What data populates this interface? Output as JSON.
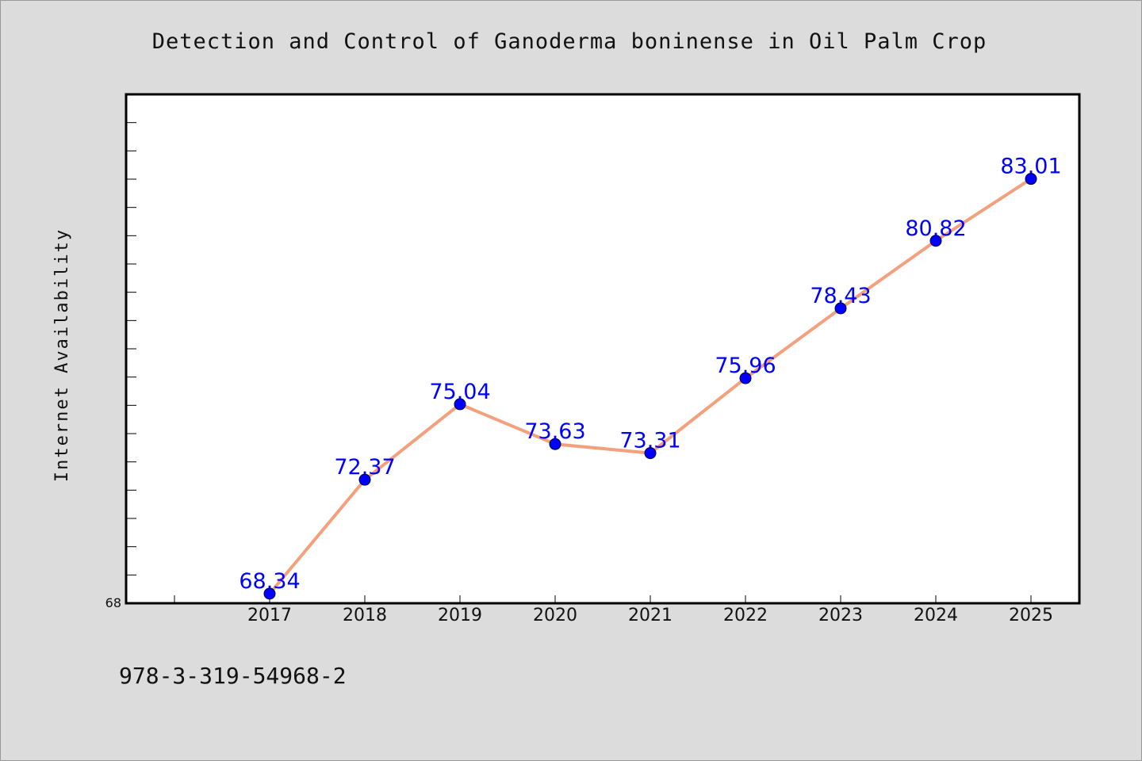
{
  "chart_data": {
    "type": "line",
    "title": "Detection and Control of Ganoderma boninense in Oil Palm Crop",
    "xlabel": "",
    "ylabel": "Internet Availability",
    "x": [
      "2017",
      "2018",
      "2019",
      "2020",
      "2021",
      "2022",
      "2023",
      "2024",
      "2025"
    ],
    "series": [
      {
        "values": [
          68.34,
          72.37,
          75.04,
          73.63,
          73.31,
          75.96,
          78.43,
          80.82,
          83.01
        ],
        "labels": [
          "68.34",
          "72.37",
          "75.04",
          "73.63",
          "73.31",
          "75.96",
          "78.43",
          "80.82",
          "83.01"
        ]
      }
    ],
    "ylim": [
      68,
      86
    ],
    "y_tick_labels": [
      "68"
    ],
    "grid": false,
    "colors": {
      "line": "#f4a07c",
      "marker": "#0000ff",
      "label": "#0000ff",
      "background": "#dcdcdc",
      "plot_background": "#ffffff"
    }
  },
  "footnote": "978-3-319-54968-2"
}
